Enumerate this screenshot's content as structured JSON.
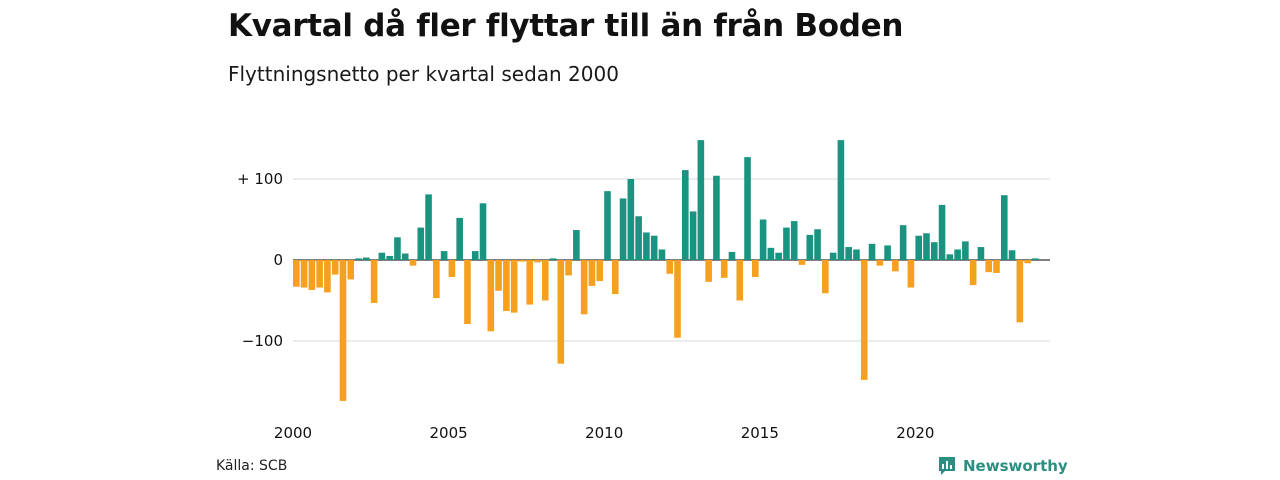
{
  "title": "Kvartal då fler flyttar till än från Boden",
  "subtitle": "Flyttningsnetto per kvartal sedan 2000",
  "source": "Källa: SCB",
  "brand": "Newsworthy",
  "colors": {
    "positive": "#1a9480",
    "negative": "#f5a01e",
    "grid": "#d9d9d9",
    "zero": "#333333"
  },
  "chart_data": {
    "type": "bar",
    "x_start_year": 2000,
    "quarters_per_year": 4,
    "xticks": [
      {
        "value": 2000,
        "label": "2000"
      },
      {
        "value": 2005,
        "label": "2005"
      },
      {
        "value": 2010,
        "label": "2010"
      },
      {
        "value": 2015,
        "label": "2015"
      },
      {
        "value": 2020,
        "label": "2020"
      }
    ],
    "yticks": [
      {
        "value": 100,
        "label": "+ 100"
      },
      {
        "value": 0,
        "label": "0"
      },
      {
        "value": -100,
        "label": "−100"
      }
    ],
    "ylim": [
      -180,
      150
    ],
    "grid": true,
    "values": [
      -33,
      -34,
      -37,
      -34,
      -40,
      -18,
      -174,
      -24,
      2,
      3,
      -53,
      9,
      5,
      28,
      8,
      -7,
      40,
      81,
      -47,
      11,
      -21,
      52,
      -79,
      11,
      70,
      -88,
      -38,
      -63,
      -65,
      -2,
      -55,
      -3,
      -50,
      2,
      -128,
      -19,
      37,
      -67,
      -32,
      -26,
      85,
      -42,
      76,
      100,
      54,
      34,
      30,
      13,
      -17,
      -96,
      111,
      60,
      148,
      -27,
      104,
      -22,
      10,
      -50,
      127,
      -21,
      50,
      15,
      9,
      40,
      48,
      -6,
      31,
      38,
      -41,
      9,
      148,
      16,
      13,
      -148,
      20,
      -7,
      18,
      -14,
      43,
      -34,
      30,
      33,
      22,
      68,
      7,
      13,
      23,
      -31,
      16,
      -15,
      -16,
      80,
      12,
      -77,
      -4,
      2
    ]
  }
}
